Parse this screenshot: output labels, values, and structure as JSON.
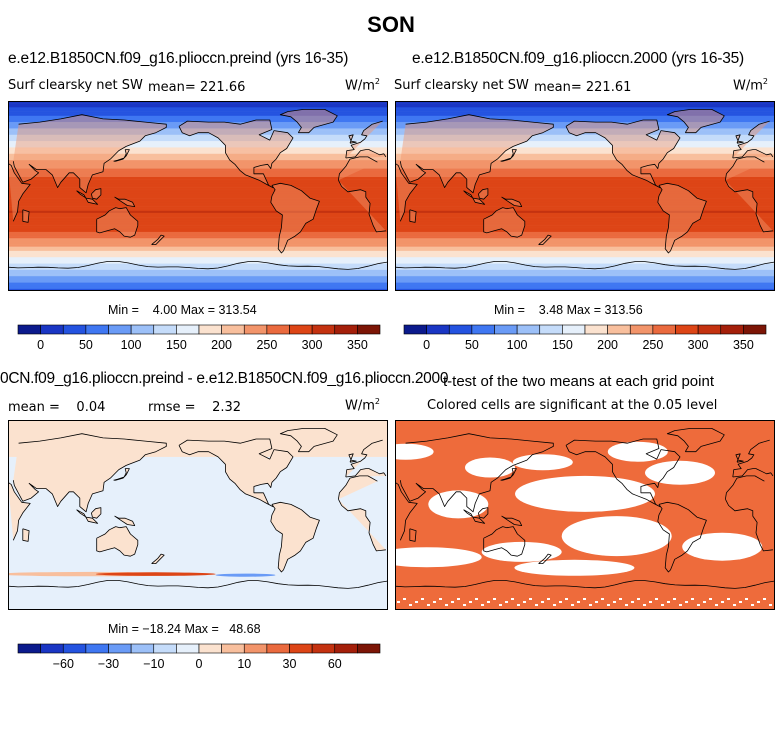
{
  "figure": {
    "season": "SON",
    "units_main": "W/m",
    "units_sup": "2"
  },
  "panels": [
    {
      "id": "preind",
      "title": "e.e12.B1850CN.f09_g16.plioccn.preind (yrs 16-35)",
      "left_label": "Surf clearsky net SW",
      "mean_text": "mean= 221.66",
      "minmax_text": "Min =    4.00 Max = 313.54"
    },
    {
      "id": "y2000",
      "title": "e.e12.B1850CN.f09_g16.plioccn.2000 (yrs 16-35)",
      "left_label": "Surf clearsky net SW",
      "mean_text": "mean= 221.61",
      "minmax_text": "Min =    3.48 Max = 313.56"
    },
    {
      "id": "diff",
      "title": "0CN.f09_g16.plioccn.preind - e.e12.B1850CN.f09_g16.plioccn.2000",
      "left_label": "mean =    0.04",
      "rmse_text": "rmse =    2.32",
      "minmax_text": "Min = −18.24 Max =   48.68"
    },
    {
      "id": "ttest",
      "title": "t-test of the two means at each grid point",
      "subtitle": "Colored cells are significant at the 0.05 level"
    }
  ],
  "chart_data": [
    {
      "type": "heatmap",
      "title": "e.e12.B1850CN.f09_g16.plioccn.preind (yrs 16-35)",
      "variable": "Surf clearsky net SW",
      "units": "W/m2",
      "mean": 221.66,
      "min": 4.0,
      "max": 313.54,
      "colorbar_levels": [
        0,
        25,
        50,
        75,
        100,
        125,
        150,
        175,
        200,
        225,
        250,
        275,
        300,
        325,
        350
      ],
      "colorbar_tick_labels": [
        "0",
        "50",
        "100",
        "150",
        "200",
        "250",
        "300",
        "350"
      ],
      "colors": [
        "#0b1a8c",
        "#1a36c4",
        "#2453e0",
        "#3f77f2",
        "#6a9bf6",
        "#9cc0f8",
        "#c5dcfa",
        "#e6f0fb",
        "#fbe2cf",
        "#f8bf9d",
        "#f2946a",
        "#ea6a3e",
        "#dd4516",
        "#c43210",
        "#a41f0a",
        "#7c1506"
      ],
      "latitude_zonal_mean": {
        "lat": [
          -90,
          -75,
          -60,
          -45,
          -30,
          -15,
          0,
          15,
          30,
          45,
          60,
          75,
          90
        ],
        "value": [
          40,
          100,
          165,
          235,
          285,
          300,
          296,
          285,
          240,
          180,
          115,
          55,
          8
        ]
      }
    },
    {
      "type": "heatmap",
      "title": "e.e12.B1850CN.f09_g16.plioccn.2000 (yrs 16-35)",
      "variable": "Surf clearsky net SW",
      "units": "W/m2",
      "mean": 221.61,
      "min": 3.48,
      "max": 313.56,
      "colorbar_levels": [
        0,
        25,
        50,
        75,
        100,
        125,
        150,
        175,
        200,
        225,
        250,
        275,
        300,
        325,
        350
      ],
      "colorbar_tick_labels": [
        "0",
        "50",
        "100",
        "150",
        "200",
        "250",
        "300",
        "350"
      ],
      "colors": [
        "#0b1a8c",
        "#1a36c4",
        "#2453e0",
        "#3f77f2",
        "#6a9bf6",
        "#9cc0f8",
        "#c5dcfa",
        "#e6f0fb",
        "#fbe2cf",
        "#f8bf9d",
        "#f2946a",
        "#ea6a3e",
        "#dd4516",
        "#c43210",
        "#a41f0a",
        "#7c1506"
      ],
      "latitude_zonal_mean": {
        "lat": [
          -90,
          -75,
          -60,
          -45,
          -30,
          -15,
          0,
          15,
          30,
          45,
          60,
          75,
          90
        ],
        "value": [
          40,
          100,
          165,
          235,
          285,
          300,
          296,
          285,
          240,
          180,
          115,
          55,
          8
        ]
      }
    },
    {
      "type": "heatmap",
      "title": "0CN.f09_g16.plioccn.preind - e.e12.B1850CN.f09_g16.plioccn.2000",
      "units": "W/m2",
      "mean": 0.04,
      "rmse": 2.32,
      "min": -18.24,
      "max": 48.68,
      "colorbar_levels": [
        -80,
        -60,
        -45,
        -30,
        -20,
        -10,
        -5,
        0,
        5,
        10,
        20,
        30,
        45,
        60,
        80
      ],
      "colorbar_tick_labels": [
        "−60",
        "−30",
        "−10",
        "0",
        "10",
        "30",
        "60"
      ],
      "colors": [
        "#0b1a8c",
        "#1a36c4",
        "#2453e0",
        "#3f77f2",
        "#6a9bf6",
        "#9cc0f8",
        "#c5dcfa",
        "#e6f0fb",
        "#fbe2cf",
        "#f8bf9d",
        "#f2946a",
        "#ea6a3e",
        "#dd4516",
        "#c43210",
        "#a41f0a",
        "#7c1506"
      ]
    },
    {
      "type": "heatmap",
      "title": "t-test of the two means at each grid point",
      "subtitle": "Colored cells are significant at the 0.05 level",
      "significant_color": "#ee6b3b"
    }
  ]
}
